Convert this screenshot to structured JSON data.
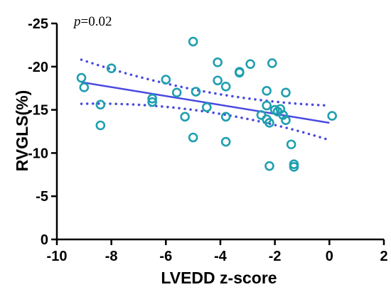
{
  "chart_data": {
    "type": "scatter",
    "title": "",
    "xlabel": "LVEDD z-score",
    "ylabel": "RVGLS(%)",
    "xlim": [
      -10,
      2
    ],
    "ylim": [
      0,
      -25
    ],
    "x_ticks": [
      -10,
      -8,
      -6,
      -4,
      -2,
      0,
      2
    ],
    "x_tick_labels": [
      "-10",
      "-8",
      "-6",
      "-4",
      "-2",
      "0",
      "2"
    ],
    "y_ticks": [
      0,
      -5,
      -10,
      -15,
      -20,
      -25
    ],
    "y_tick_labels": [
      "0",
      "-5",
      "-10",
      "-15",
      "-20",
      "-25"
    ],
    "grid": false,
    "annotation": {
      "italic": "p",
      "text": "=0.02"
    },
    "marker_color": "#1f9fb0",
    "line_color": "#4a4ae0",
    "points": [
      {
        "x": -9.1,
        "y": -18.7
      },
      {
        "x": -9.0,
        "y": -17.6
      },
      {
        "x": -8.4,
        "y": -15.6
      },
      {
        "x": -8.4,
        "y": -13.2
      },
      {
        "x": -8.0,
        "y": -19.8
      },
      {
        "x": -6.5,
        "y": -16.3
      },
      {
        "x": -6.5,
        "y": -15.9
      },
      {
        "x": -6.0,
        "y": -18.5
      },
      {
        "x": -5.6,
        "y": -17.0
      },
      {
        "x": -5.3,
        "y": -14.2
      },
      {
        "x": -5.0,
        "y": -22.9
      },
      {
        "x": -5.0,
        "y": -11.8
      },
      {
        "x": -4.9,
        "y": -17.1
      },
      {
        "x": -4.5,
        "y": -15.3
      },
      {
        "x": -4.1,
        "y": -20.5
      },
      {
        "x": -4.1,
        "y": -18.4
      },
      {
        "x": -3.8,
        "y": -17.7
      },
      {
        "x": -3.8,
        "y": -14.2
      },
      {
        "x": -3.8,
        "y": -11.3
      },
      {
        "x": -3.3,
        "y": -19.4
      },
      {
        "x": -3.3,
        "y": -19.3
      },
      {
        "x": -2.9,
        "y": -20.3
      },
      {
        "x": -2.5,
        "y": -14.4
      },
      {
        "x": -2.3,
        "y": -17.2
      },
      {
        "x": -2.3,
        "y": -15.5
      },
      {
        "x": -2.3,
        "y": -13.9
      },
      {
        "x": -2.2,
        "y": -13.5
      },
      {
        "x": -2.2,
        "y": -8.5
      },
      {
        "x": -2.1,
        "y": -20.4
      },
      {
        "x": -2.0,
        "y": -15.0
      },
      {
        "x": -1.9,
        "y": -14.8
      },
      {
        "x": -1.8,
        "y": -15.1
      },
      {
        "x": -1.7,
        "y": -14.4
      },
      {
        "x": -1.6,
        "y": -13.8
      },
      {
        "x": -1.6,
        "y": -17.0
      },
      {
        "x": -1.4,
        "y": -11.0
      },
      {
        "x": -1.3,
        "y": -8.7
      },
      {
        "x": -1.3,
        "y": -8.4
      },
      {
        "x": 0.1,
        "y": -14.3
      }
    ],
    "fit_line": {
      "x": [
        -9.1,
        0.0
      ],
      "y": [
        -18.2,
        -13.5
      ]
    },
    "ci_upper": {
      "x": [
        -9.1,
        -4.55,
        0.0
      ],
      "y": [
        -20.8,
        -17.1,
        -15.5
      ]
    },
    "ci_lower": {
      "x": [
        -9.1,
        -4.55,
        0.0
      ],
      "y": [
        -15.7,
        -14.8,
        -11.5
      ]
    }
  }
}
